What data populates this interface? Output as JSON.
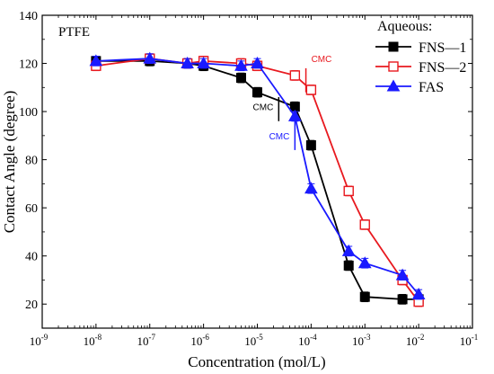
{
  "chart_data": {
    "type": "line",
    "panel_label": "PTFE",
    "xlabel": "Concentration (mol/L)",
    "ylabel": "Contact Angle (degree)",
    "xscale": "log",
    "xlim": [
      1e-09,
      0.1
    ],
    "ylim": [
      10,
      140
    ],
    "x_tick_labels": [
      "10-9",
      "10-8",
      "10-7",
      "10-6",
      "10-5",
      "10-4",
      "10-3",
      "10-2",
      "10-1"
    ],
    "y_ticks": [
      20,
      40,
      60,
      80,
      100,
      120,
      140
    ],
    "legend_title": "Aqueous:",
    "legend_position": "top-right",
    "grid": false,
    "series": [
      {
        "name": "FNS—1",
        "color": "#000000",
        "marker": "square-filled",
        "x": [
          1e-08,
          1e-07,
          5e-07,
          1e-06,
          5e-06,
          1e-05,
          5e-05,
          0.0001,
          0.0005,
          0.001,
          0.005,
          0.01
        ],
        "y": [
          121,
          121,
          120,
          119,
          114,
          108,
          102,
          86,
          36,
          23,
          22,
          22
        ],
        "err": [
          2,
          2,
          2,
          2,
          2,
          2,
          2,
          2,
          2,
          2,
          2,
          2
        ]
      },
      {
        "name": "FNS—2",
        "color": "#e8191f",
        "marker": "square-open",
        "x": [
          1e-08,
          1e-07,
          5e-07,
          1e-06,
          5e-06,
          1e-05,
          5e-05,
          0.0001,
          0.0005,
          0.001,
          0.005,
          0.01
        ],
        "y": [
          119,
          122,
          120,
          121,
          120,
          119,
          115,
          109,
          67,
          53,
          30,
          21
        ],
        "err": [
          2,
          2,
          2,
          2,
          2,
          2,
          2,
          2,
          2,
          2,
          2,
          2
        ]
      },
      {
        "name": "FAS",
        "color": "#1a1aff",
        "marker": "triangle-filled",
        "x": [
          1e-08,
          1e-07,
          5e-07,
          1e-06,
          5e-06,
          1e-05,
          5e-05,
          0.0001,
          0.0005,
          0.001,
          0.005,
          0.01
        ],
        "y": [
          121,
          122,
          120,
          120,
          119,
          120,
          98,
          68,
          42,
          37,
          32,
          24
        ],
        "err": [
          2,
          2,
          2,
          2,
          2,
          2,
          2,
          2,
          2,
          2,
          2,
          2
        ]
      }
    ],
    "annotations": [
      {
        "text": "CMC",
        "color": "#000000",
        "x": 2.5e-05,
        "y": 102,
        "line_y": [
          96,
          106
        ]
      },
      {
        "text": "CMC",
        "color": "#e8191f",
        "x": 8e-05,
        "y": 116,
        "line_y": [
          108,
          118
        ]
      },
      {
        "text": "CMC",
        "color": "#1a1aff",
        "x": 5e-05,
        "y": 90,
        "line_y": [
          84,
          96
        ]
      }
    ]
  }
}
